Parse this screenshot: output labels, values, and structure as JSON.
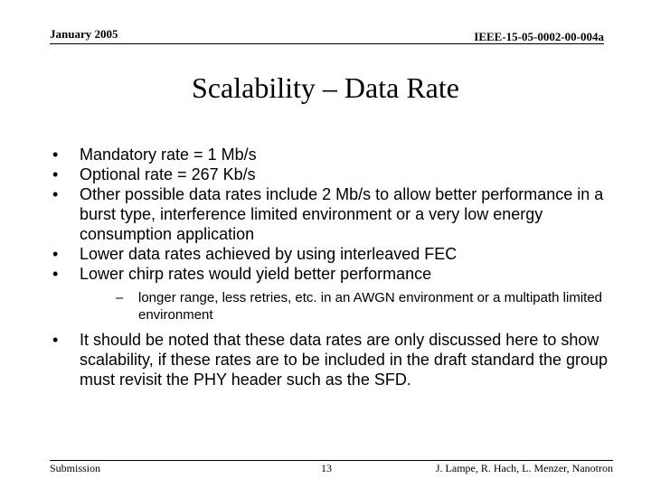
{
  "header": {
    "date": "January 2005",
    "doc_id": "IEEE-15-05-0002-00-004a"
  },
  "title": "Scalability – Data Rate",
  "bullets": [
    "Mandatory rate = 1 Mb/s",
    "Optional rate = 267 Kb/s",
    "Other possible data rates include 2 Mb/s to allow better performance in a burst type, interference limited environment or a very low energy consumption application",
    "Lower data rates achieved by using interleaved FEC",
    "Lower chirp rates would yield better performance",
    "It should be noted that these data rates are only discussed here to show scalability, if these rates are to be included in the draft standard the group must revisit the PHY header such as the SFD."
  ],
  "sub_bullets": [
    "longer range, less retries, etc. in an AWGN environment or a multipath limited environment"
  ],
  "bullet_symbol": "•",
  "sub_bullet_symbol": "–",
  "footer": {
    "left": "Submission",
    "page": "13",
    "authors": "J. Lampe, R. Hach, L. Menzer, Nanotron"
  }
}
